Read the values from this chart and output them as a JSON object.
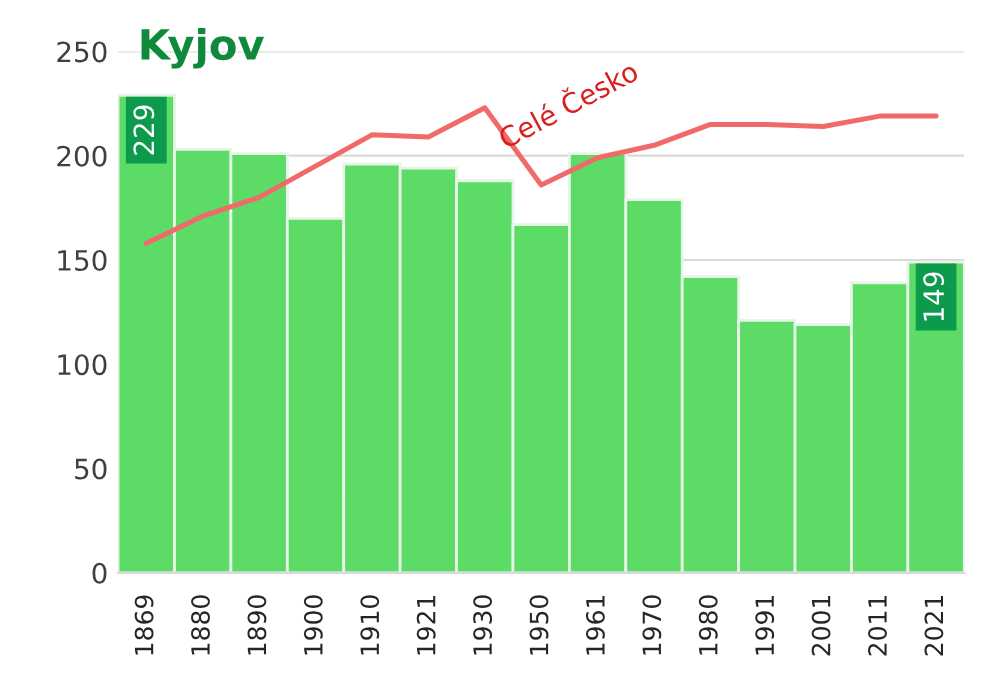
{
  "chart_data": {
    "type": "bar",
    "title": "Kyjov",
    "categories": [
      "1869",
      "1880",
      "1890",
      "1900",
      "1910",
      "1921",
      "1930",
      "1950",
      "1961",
      "1970",
      "1980",
      "1991",
      "2001",
      "2011",
      "2021"
    ],
    "series": [
      {
        "color": "#5cdb66",
        "values": [
          229,
          203,
          201,
          170,
          196,
          194,
          188,
          167,
          201,
          179,
          142,
          121,
          119,
          139,
          149
        ],
        "value_labels": [
          "229",
          null,
          null,
          null,
          null,
          null,
          null,
          null,
          null,
          null,
          null,
          null,
          null,
          null,
          "149"
        ]
      },
      {
        "type": "line",
        "name": "Celé Česko",
        "color": "#f06a6a",
        "values": [
          158,
          171,
          180,
          195,
          210,
          209,
          223,
          186,
          199,
          205,
          215,
          215,
          214,
          219,
          219
        ]
      }
    ],
    "ylim": [
      0,
      250
    ],
    "yticks": [
      0,
      50,
      100,
      150,
      200,
      250
    ],
    "grid": "y",
    "legend": false
  }
}
